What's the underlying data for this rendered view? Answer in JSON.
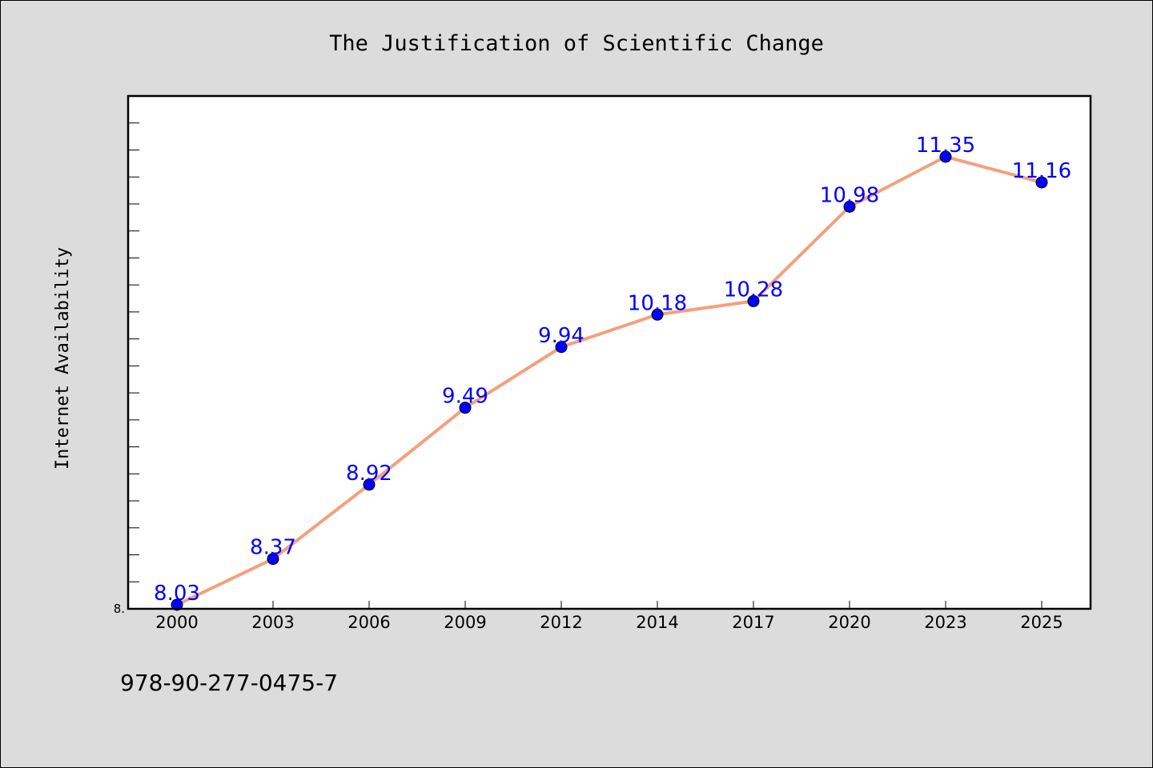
{
  "colors": {
    "background": "#dcdcdc",
    "plot_background": "#ffffff",
    "line": "#f4a07c",
    "marker": "#0000ff",
    "label": "#0000ff"
  },
  "footer": {
    "isbn": "978-90-277-0475-7"
  },
  "chart_data": {
    "type": "line",
    "title": "The Justification of Scientific Change",
    "xlabel": "",
    "ylabel": "Internet Availability",
    "categories": [
      "2000",
      "2003",
      "2006",
      "2009",
      "2012",
      "2014",
      "2017",
      "2020",
      "2023",
      "2025"
    ],
    "series": [
      {
        "values": [
          8.03,
          8.37,
          8.92,
          9.49,
          9.94,
          10.18,
          10.28,
          10.98,
          11.35,
          11.16
        ],
        "labels": [
          "8.03",
          "8.37",
          "8.92",
          "9.49",
          "9.94",
          "10.18",
          "10.28",
          "10.98",
          "11.35",
          "11.16"
        ]
      }
    ],
    "ylim": [
      8.0,
      11.8
    ],
    "ytick_labels": [
      "8."
    ],
    "minor_tick_step": 0.2,
    "grid": false,
    "legend": "none",
    "markers": "circle"
  }
}
